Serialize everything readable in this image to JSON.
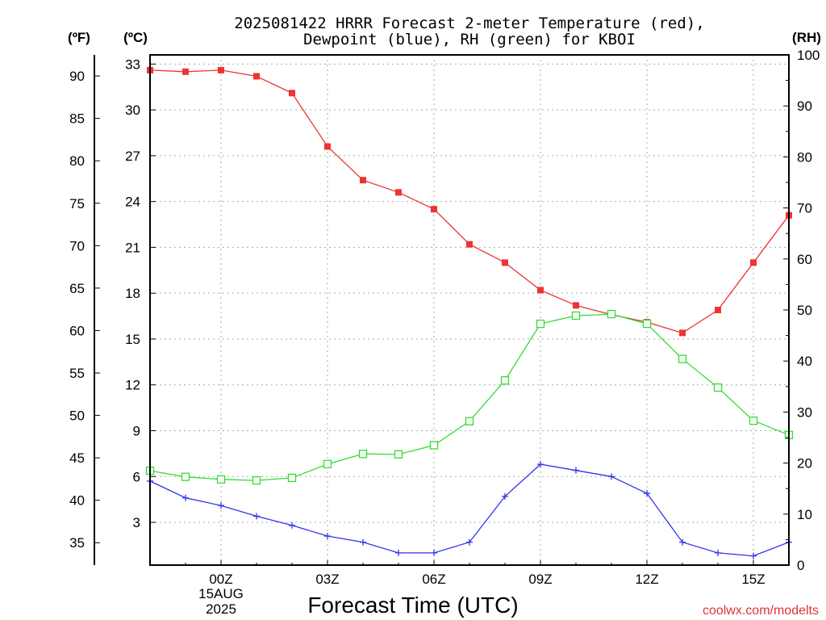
{
  "chart_data": {
    "type": "line",
    "title_line1": "2025081422 HRRR Forecast 2-meter Temperature (red),",
    "title_line2": "Dewpoint (blue), RH (green) for KBOI",
    "xlabel": "Forecast Time (UTC)",
    "watermark": "coolwx.com/modelts",
    "left_outer_unit": "(ºF)",
    "left_inner_unit": "(ºC)",
    "right_unit": "(RH)",
    "x_hours": [
      -2,
      -1,
      0,
      1,
      2,
      3,
      4,
      5,
      6,
      7,
      8,
      9,
      10,
      11,
      12,
      13,
      14,
      15,
      16
    ],
    "x_tick_labels": [
      {
        "hour": 0,
        "label": "00Z"
      },
      {
        "hour": 3,
        "label": "03Z"
      },
      {
        "hour": 6,
        "label": "06Z"
      },
      {
        "hour": 9,
        "label": "09Z"
      },
      {
        "hour": 12,
        "label": "12Z"
      },
      {
        "hour": 15,
        "label": "15Z"
      }
    ],
    "date_label_line1": "15AUG",
    "date_label_line2": "2025",
    "xlim": [
      -2,
      16
    ],
    "celsius_ylim": [
      0.2,
      33.6
    ],
    "celsius_ticks": [
      3,
      6,
      9,
      12,
      15,
      18,
      21,
      24,
      27,
      30,
      33
    ],
    "fahrenheit_ticks": [
      35,
      40,
      45,
      50,
      55,
      60,
      65,
      70,
      75,
      80,
      85,
      90
    ],
    "rh_ylim": [
      0,
      100
    ],
    "rh_ticks": [
      0,
      10,
      20,
      30,
      40,
      50,
      60,
      70,
      80,
      90,
      100
    ],
    "series": [
      {
        "name": "Temperature",
        "axis": "celsius",
        "color": "#ee3333",
        "marker": "filled-square",
        "values": [
          32.6,
          32.5,
          32.6,
          32.2,
          31.1,
          27.6,
          25.4,
          24.6,
          23.5,
          21.2,
          20.0,
          18.2,
          17.2,
          16.6,
          16.1,
          15.4,
          16.9,
          20.0,
          23.1
        ]
      },
      {
        "name": "Dewpoint",
        "axis": "celsius",
        "color": "#3333ee",
        "marker": "plus",
        "values": [
          5.7,
          4.6,
          4.1,
          3.4,
          2.8,
          2.1,
          1.7,
          1.0,
          1.0,
          1.7,
          4.7,
          6.8,
          6.4,
          6.0,
          4.9,
          1.7,
          1.0,
          0.8,
          1.7
        ]
      },
      {
        "name": "RH",
        "axis": "rh",
        "color": "#33dd33",
        "marker": "open-square",
        "values": [
          18.5,
          17.3,
          16.8,
          16.6,
          17.1,
          19.8,
          21.8,
          21.7,
          23.5,
          28.2,
          36.2,
          47.3,
          48.9,
          49.2,
          47.3,
          40.4,
          34.8,
          28.3,
          25.5
        ]
      }
    ],
    "grid": true
  }
}
